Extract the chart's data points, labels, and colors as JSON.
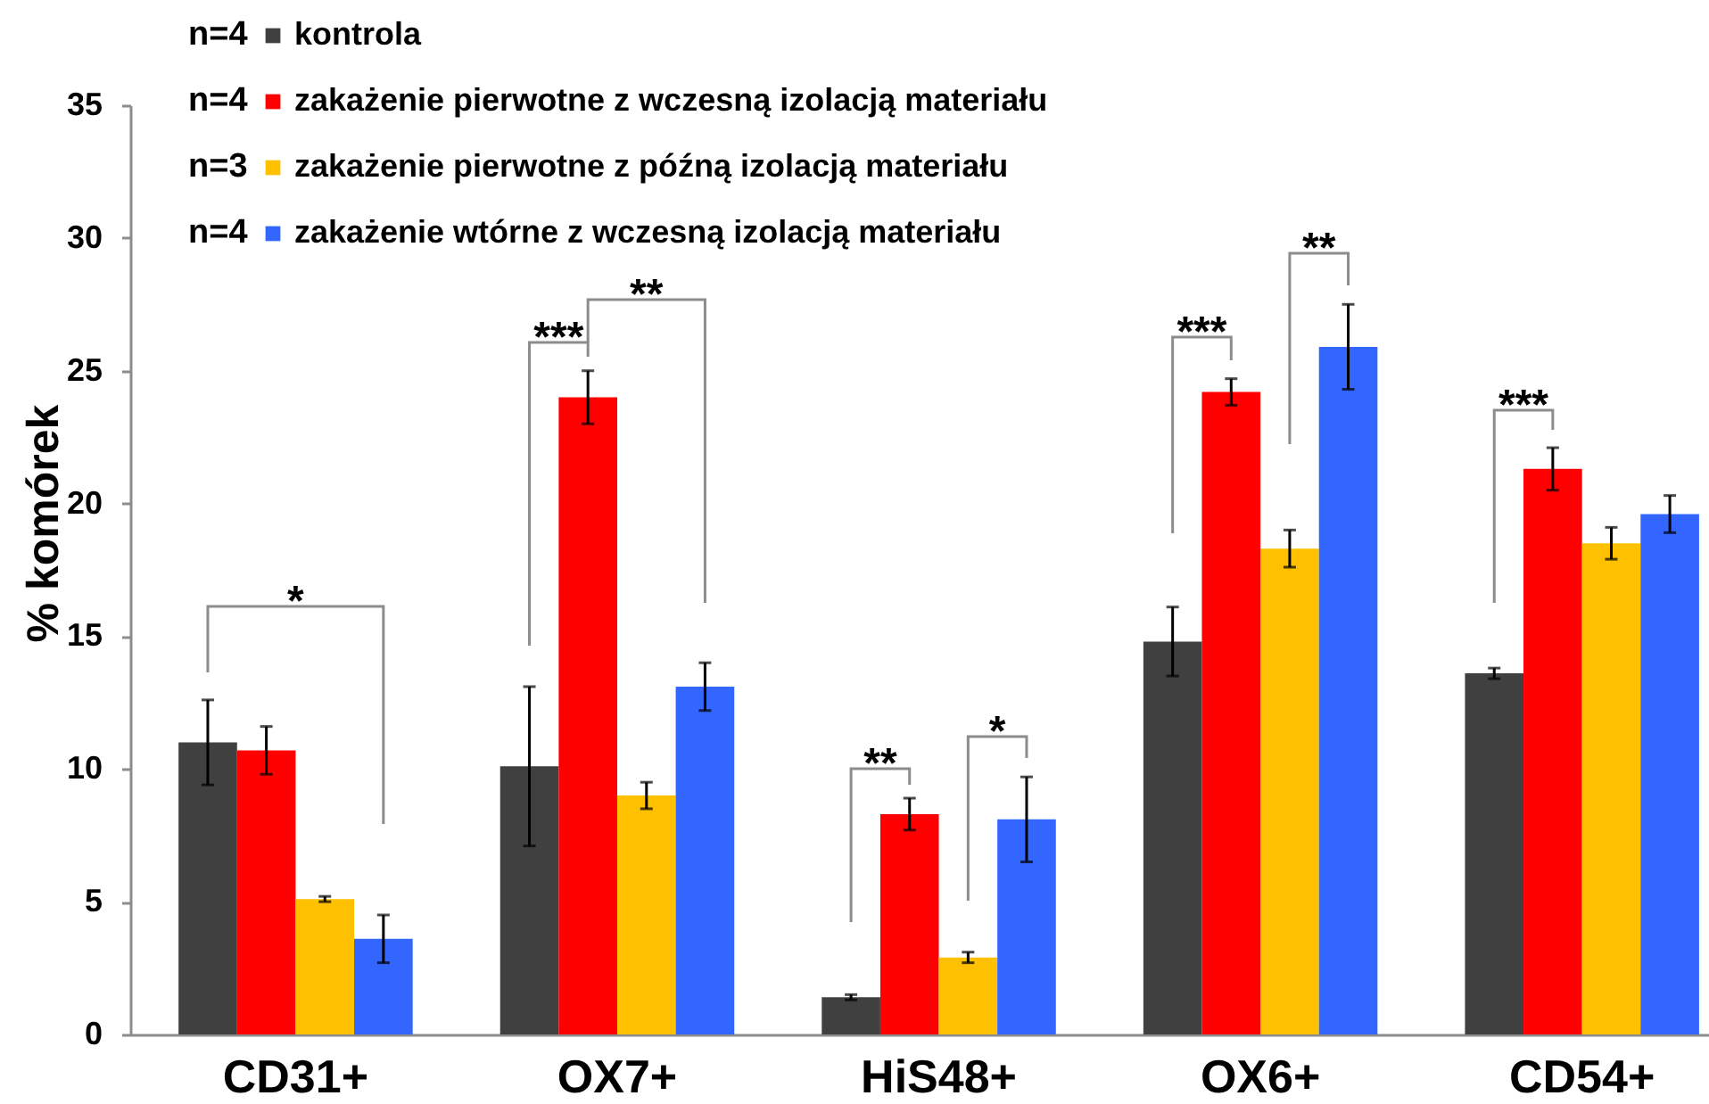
{
  "chart_data": {
    "type": "bar",
    "ylabel": "% komórek",
    "categories": [
      "CD31+",
      "OX7+",
      "HiS48+",
      "OX6+",
      "CD54+"
    ],
    "series": [
      {
        "name": "kontrola",
        "color": "#404040",
        "values": [
          11.0,
          10.1,
          1.4,
          14.8,
          13.6
        ],
        "errors": [
          1.6,
          3.0,
          0.1,
          1.3,
          0.2
        ]
      },
      {
        "name": "zakażenie pierwotne z wczesną izolacją materiału",
        "color": "#ff0000",
        "values": [
          10.7,
          24.0,
          8.3,
          24.2,
          21.3
        ],
        "errors": [
          0.9,
          1.0,
          0.6,
          0.5,
          0.8
        ]
      },
      {
        "name": "zakażenie pierwotne z późną izolacją materiału",
        "color": "#ffc000",
        "values": [
          5.1,
          9.0,
          2.9,
          18.3,
          18.5
        ],
        "errors": [
          0.1,
          0.5,
          0.2,
          0.7,
          0.6
        ]
      },
      {
        "name": "zakażenie wtórne z wczesną izolacją materiału",
        "color": "#3366ff",
        "values": [
          3.6,
          13.1,
          8.1,
          25.9,
          19.6
        ],
        "errors": [
          0.9,
          0.9,
          1.6,
          1.6,
          0.7
        ]
      }
    ],
    "ylim": [
      0,
      35
    ],
    "yticks": [
      0,
      5,
      10,
      15,
      20,
      25,
      30,
      35
    ],
    "legend": "top left",
    "annotations": [
      "n=4",
      "n=4",
      "n=3",
      "n=4",
      "*",
      "***",
      "**",
      "**",
      "*",
      "***",
      "**",
      "***"
    ]
  }
}
